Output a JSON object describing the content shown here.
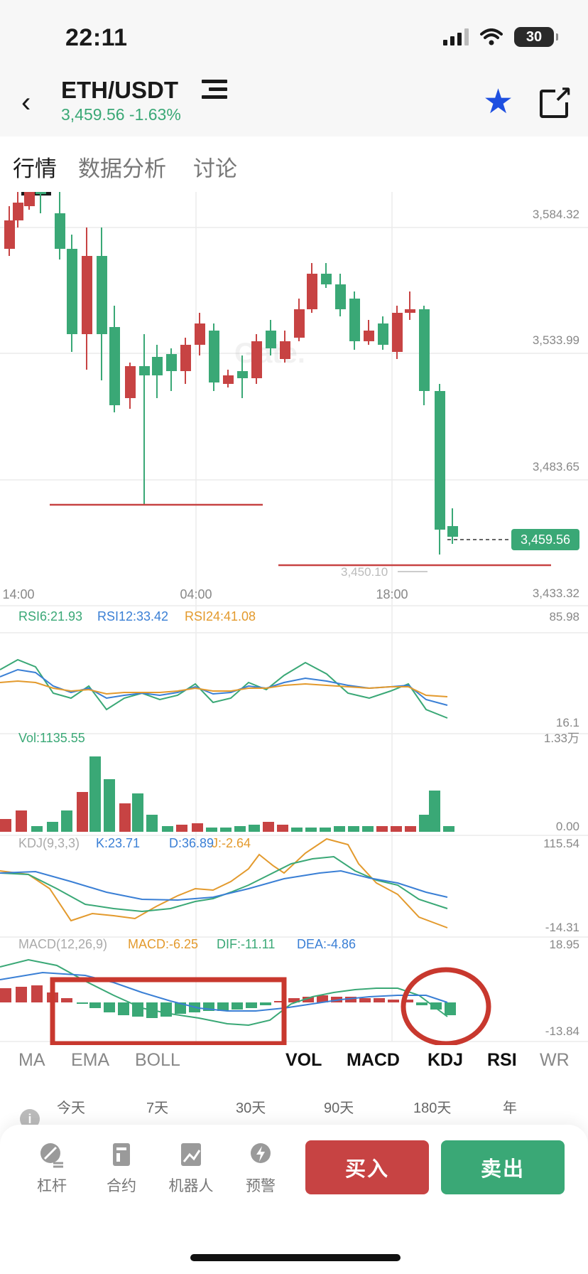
{
  "status_bar": {
    "time": "22:11",
    "battery": "30"
  },
  "header": {
    "pair": "ETH/USDT",
    "price": "3,459.56",
    "change": "-1.63%",
    "icons": [
      "back-icon",
      "pair-menu-icon",
      "star-icon",
      "share-icon"
    ]
  },
  "tabs": [
    "行情",
    "数据分析",
    "讨论"
  ],
  "main_chart": {
    "watermark": "Gate.",
    "y_labels": [
      "3,584.32",
      "3,533.99",
      "3,483.65",
      "3,433.32"
    ],
    "x_labels": [
      "14:00",
      "04:00",
      "18:00"
    ],
    "current_price": "3,459.56",
    "low_label": "3,450.10"
  },
  "rsi": {
    "rsi6": "RSI6:21.93",
    "rsi12": "RSI12:33.42",
    "rsi24": "RSI24:41.08",
    "max": "85.98",
    "min": "16.1"
  },
  "vol": {
    "label": "Vol:1135.55",
    "max": "1.33万",
    "min": "0.00"
  },
  "kdj": {
    "label": "KDJ(9,3,3)",
    "k": "K:23.71",
    "d": "D:36.89",
    "j": "J:-2.64",
    "max": "115.54",
    "min": "-14.31"
  },
  "macd": {
    "label": "MACD(12,26,9)",
    "macd": "MACD:-6.25",
    "dif": "DIF:-11.11",
    "dea": "DEA:-4.86",
    "max": "18.95",
    "min": "-13.84"
  },
  "indicator_tabs": {
    "left": [
      "MA",
      "EMA",
      "BOLL"
    ],
    "right": [
      "VOL",
      "MACD",
      "KDJ",
      "RSI",
      "WR"
    ]
  },
  "periods": [
    "今天",
    "7天",
    "30天",
    "90天",
    "180天",
    "年"
  ],
  "bottom_bar": {
    "tools": [
      "杠杆",
      "合约",
      "机器人",
      "预警"
    ],
    "buy": "买入",
    "sell": "卖出"
  },
  "colors": {
    "up": "#3aa876",
    "down": "#c74343",
    "accent": "#1e4fe0"
  }
}
